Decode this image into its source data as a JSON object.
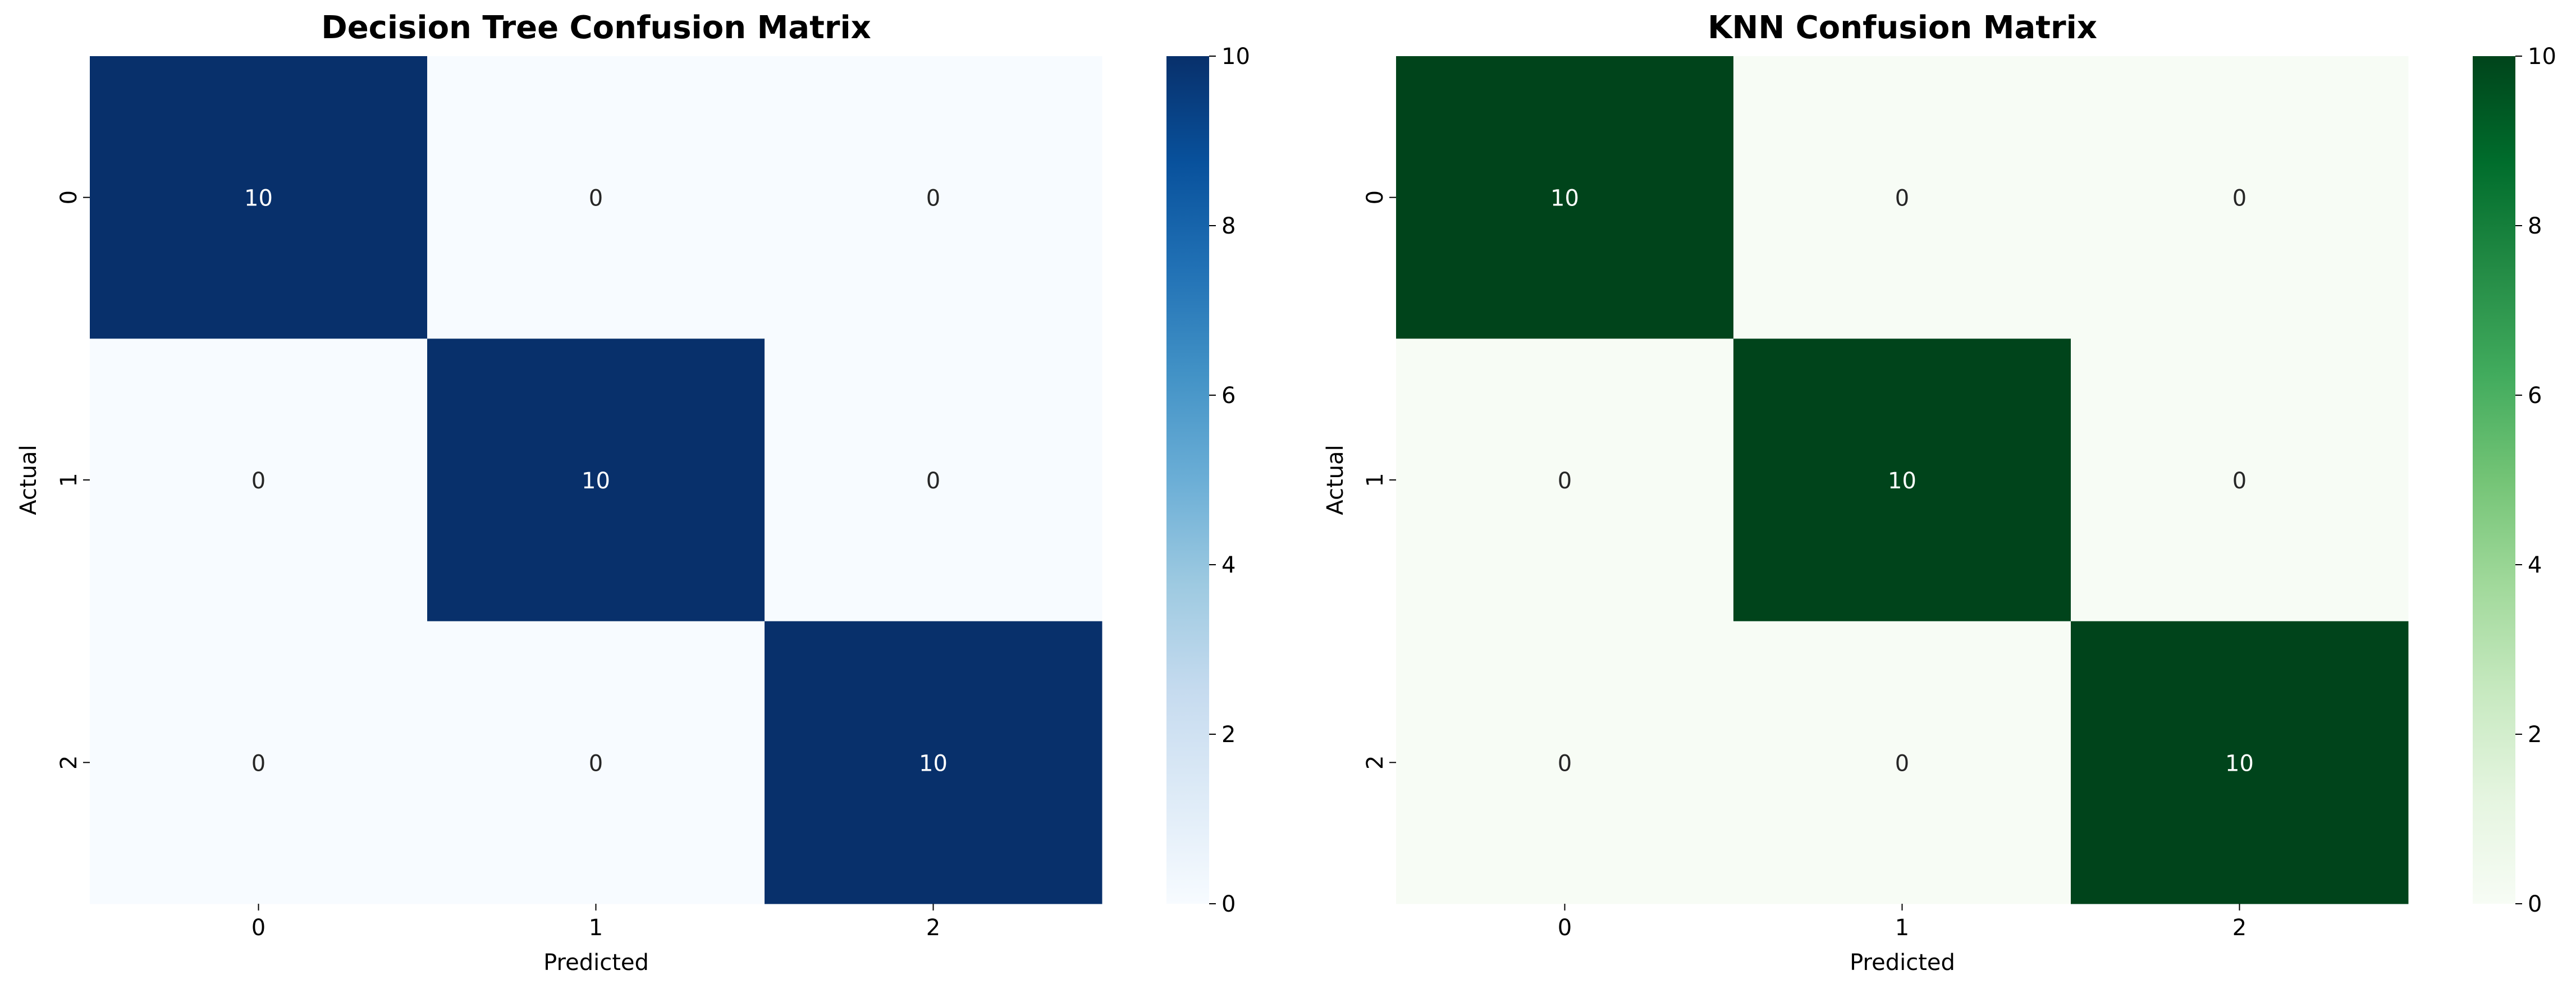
{
  "chart_data": [
    {
      "type": "heatmap",
      "title": "Decision Tree Confusion Matrix",
      "xlabel": "Predicted",
      "ylabel": "Actual",
      "x_categories": [
        "0",
        "1",
        "2"
      ],
      "y_categories": [
        "0",
        "1",
        "2"
      ],
      "matrix": [
        [
          10,
          0,
          0
        ],
        [
          0,
          10,
          0
        ],
        [
          0,
          0,
          10
        ]
      ],
      "annotations": true,
      "colormap": "Blues",
      "color_low": "#f7fbff",
      "color_high": "#08306b",
      "vmin": 0,
      "vmax": 10,
      "colorbar_ticks": [
        "0",
        "2",
        "4",
        "6",
        "8",
        "10"
      ],
      "grid": false
    },
    {
      "type": "heatmap",
      "title": "KNN Confusion Matrix",
      "xlabel": "Predicted",
      "ylabel": "Actual",
      "x_categories": [
        "0",
        "1",
        "2"
      ],
      "y_categories": [
        "0",
        "1",
        "2"
      ],
      "matrix": [
        [
          10,
          0,
          0
        ],
        [
          0,
          10,
          0
        ],
        [
          0,
          0,
          10
        ]
      ],
      "annotations": true,
      "colormap": "Greens",
      "color_low": "#f7fcf5",
      "color_high": "#00441b",
      "vmin": 0,
      "vmax": 10,
      "colorbar_ticks": [
        "0",
        "2",
        "4",
        "6",
        "8",
        "10"
      ],
      "grid": false
    }
  ]
}
